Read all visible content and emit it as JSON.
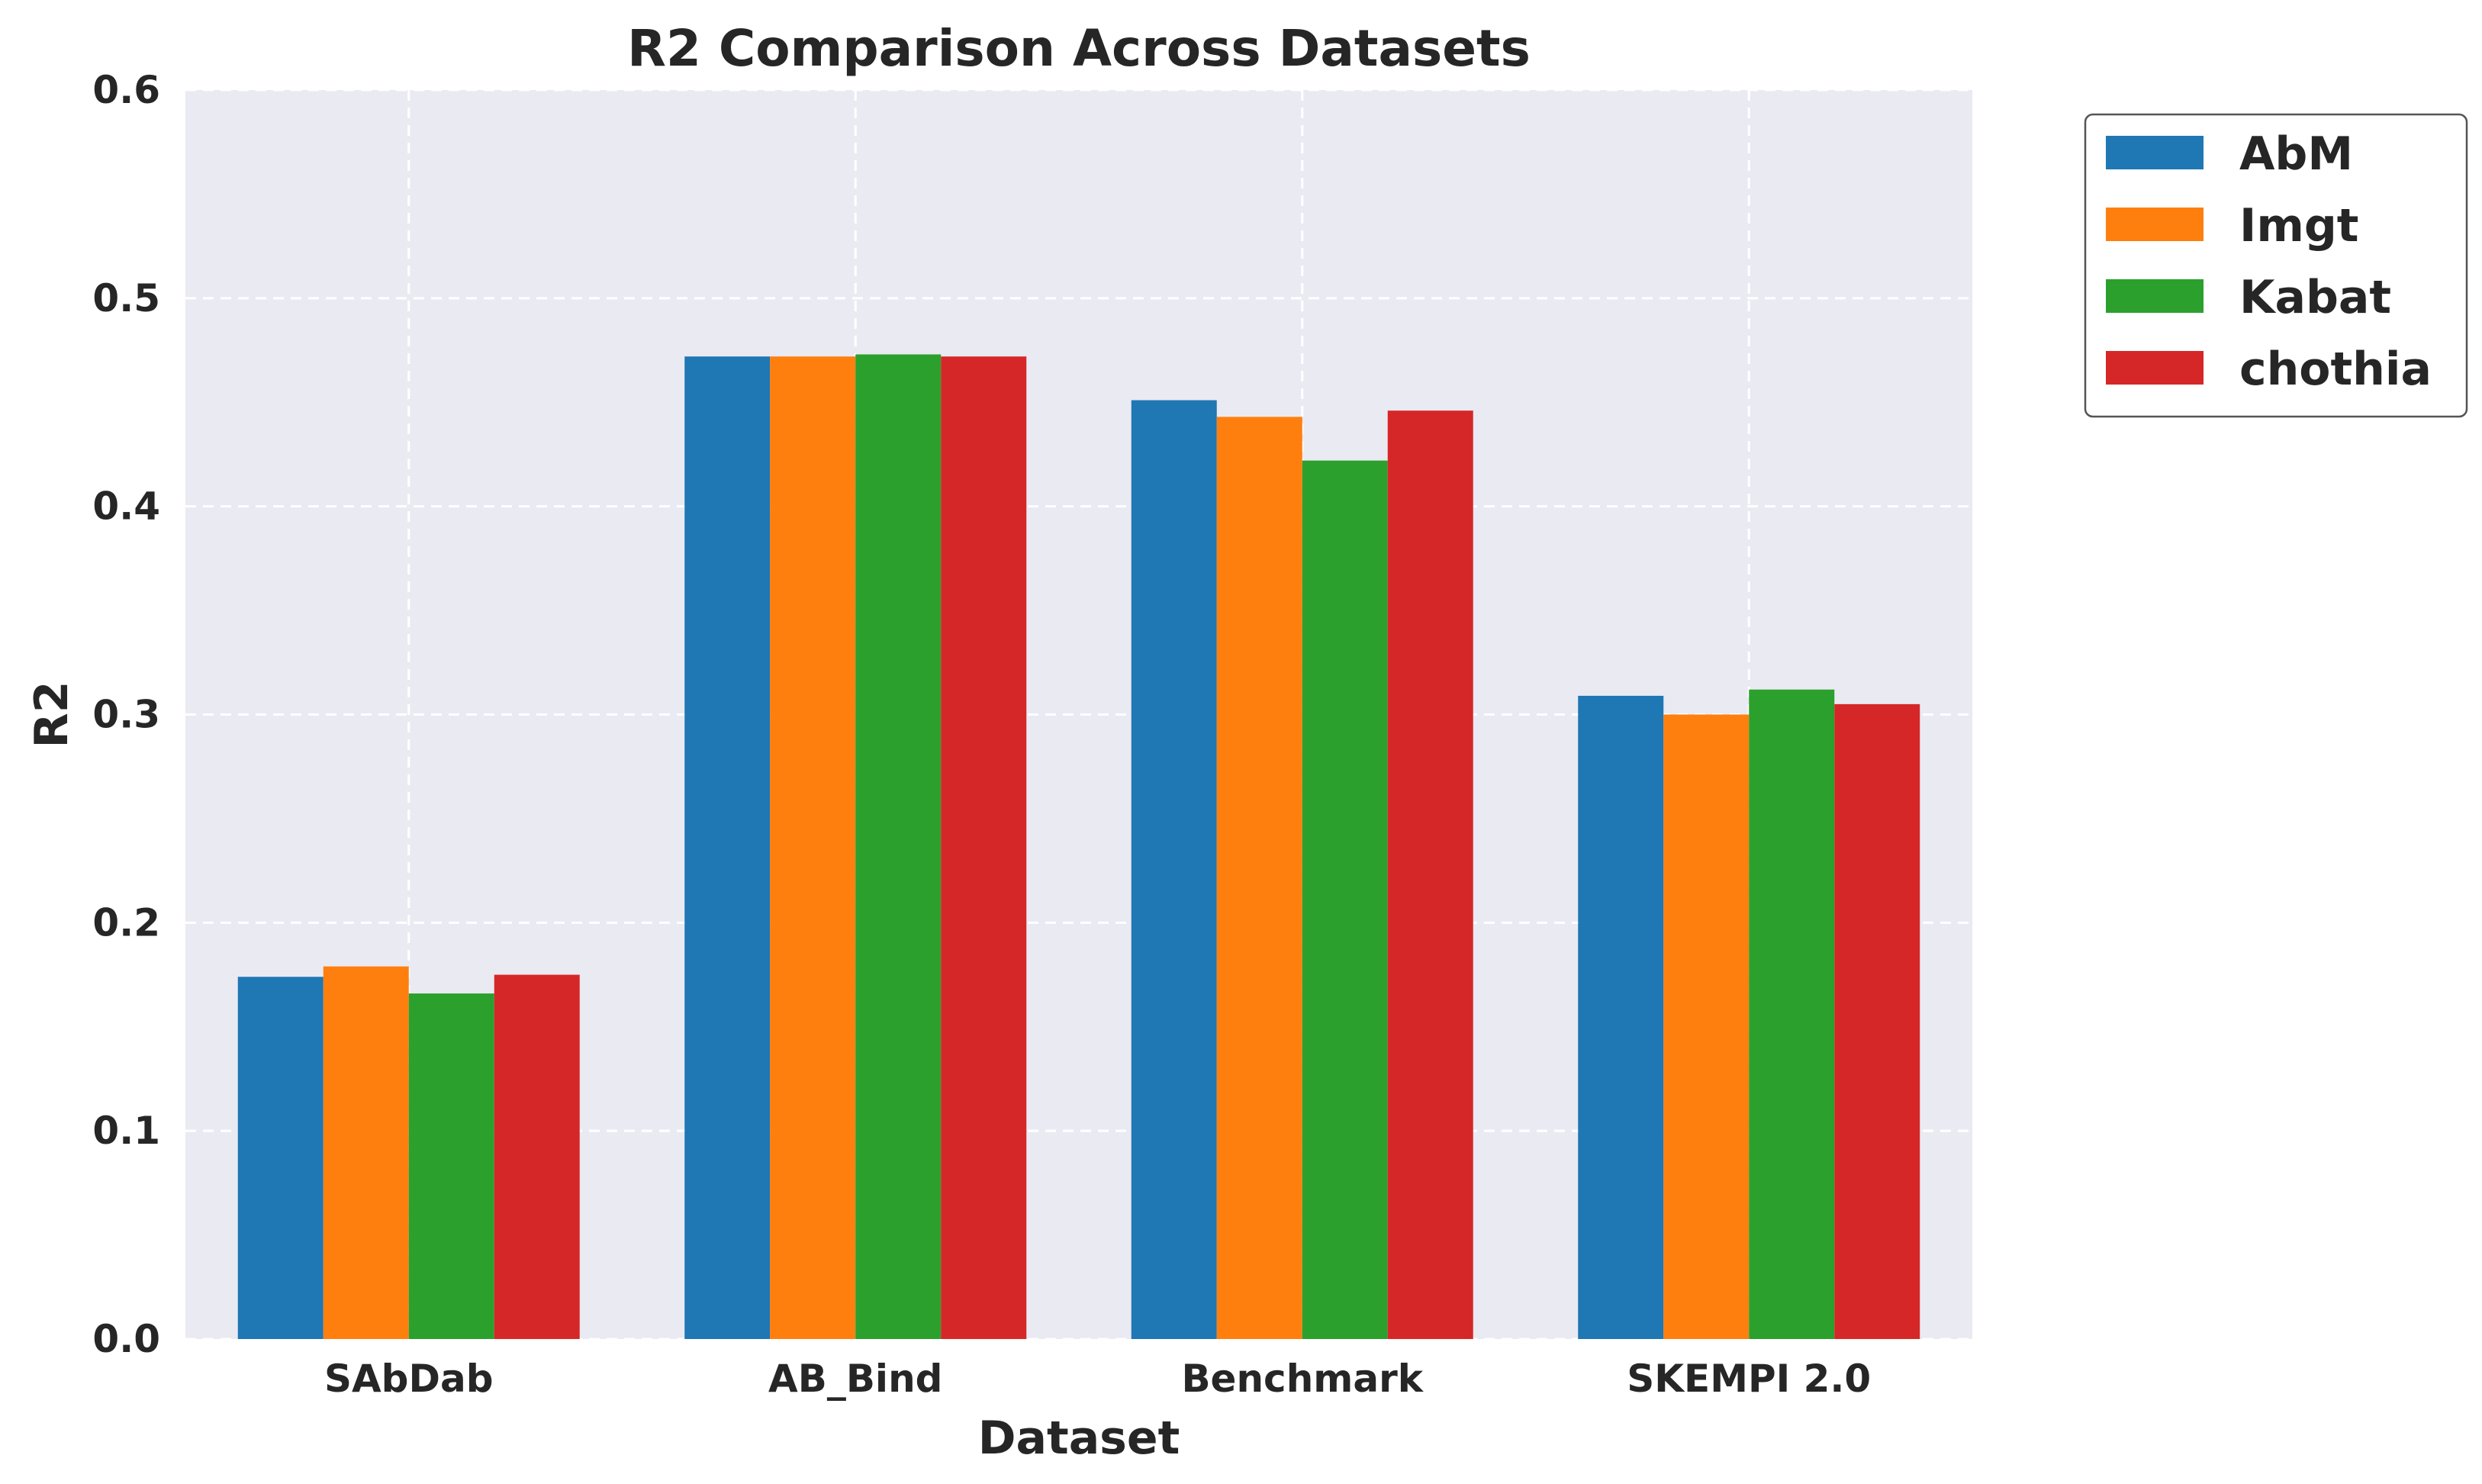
{
  "chart_data": {
    "type": "bar",
    "title": "R2 Comparison Across Datasets",
    "xlabel": "Dataset",
    "ylabel": "R2",
    "ylim": [
      0,
      0.6
    ],
    "yticks": [
      "0.0",
      "0.1",
      "0.2",
      "0.3",
      "0.4",
      "0.5",
      "0.6"
    ],
    "grid": true,
    "legend_position": "outside-top-right",
    "categories": [
      "SAbDab",
      "AB_Bind",
      "Benchmark",
      "SKEMPI 2.0"
    ],
    "series": [
      {
        "name": "AbM",
        "color": "#1f77b4",
        "values": [
          0.174,
          0.472,
          0.451,
          0.309
        ]
      },
      {
        "name": "Imgt",
        "color": "#ff7f0e",
        "values": [
          0.179,
          0.472,
          0.443,
          0.3
        ]
      },
      {
        "name": "Kabat",
        "color": "#2ca02c",
        "values": [
          0.166,
          0.473,
          0.422,
          0.312
        ]
      },
      {
        "name": "chothia",
        "color": "#d62728",
        "values": [
          0.175,
          0.472,
          0.446,
          0.305
        ]
      }
    ],
    "plot_background": "#eaeaf2",
    "grid_color": "#ffffff"
  }
}
